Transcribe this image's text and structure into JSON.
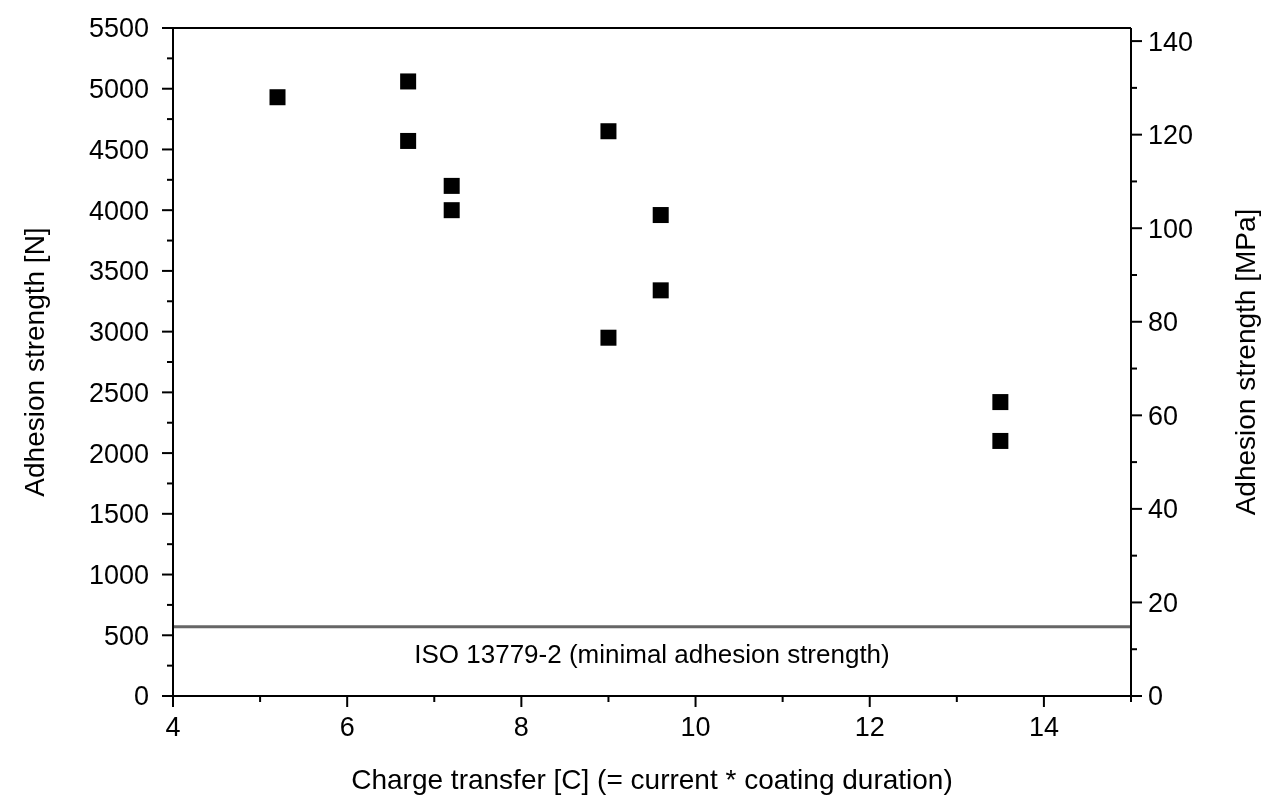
{
  "chart_data": {
    "type": "scatter",
    "xlabel": "Charge transfer [C] (= current * coating duration)",
    "ylabel": "Adhesion strength [N]",
    "y2label": "Adhesion strength [MPa]",
    "x": [
      5.2,
      6.7,
      6.7,
      7.2,
      7.2,
      9.0,
      9.0,
      9.6,
      9.6,
      13.5,
      13.5
    ],
    "series": [
      {
        "color": "#000000",
        "values": [
          4930,
          5060,
          4570,
          4200,
          4000,
          4650,
          2950,
          3960,
          3340,
          2420,
          2100
        ]
      }
    ],
    "marker": "square",
    "xlim": [
      4,
      15
    ],
    "xticks": [
      4,
      {
        "value": 5,
        "label": null
      },
      6,
      {
        "value": 7,
        "label": null
      },
      8,
      {
        "value": 9,
        "label": null
      },
      10,
      {
        "value": 11,
        "label": null
      },
      12,
      {
        "value": 13,
        "label": null
      },
      14,
      {
        "value": 15,
        "label": null
      }
    ],
    "ylim": [
      0,
      5500
    ],
    "yticks": [
      0,
      {
        "value": 250,
        "label": null
      },
      500,
      {
        "value": 750,
        "label": null
      },
      1000,
      {
        "value": 1250,
        "label": null
      },
      1500,
      {
        "value": 1750,
        "label": null
      },
      2000,
      {
        "value": 2250,
        "label": null
      },
      2500,
      {
        "value": 2750,
        "label": null
      },
      3000,
      {
        "value": 3250,
        "label": null
      },
      3500,
      {
        "value": 3750,
        "label": null
      },
      4000,
      {
        "value": 4250,
        "label": null
      },
      4500,
      {
        "value": 4750,
        "label": null
      },
      5000,
      {
        "value": 5250,
        "label": null
      },
      5500
    ],
    "y2lim": [
      0,
      142.8
    ],
    "y2ticks": [
      0,
      {
        "value": 10,
        "label": null
      },
      20,
      {
        "value": 30,
        "label": null
      },
      40,
      {
        "value": 50,
        "label": null
      },
      60,
      {
        "value": 70,
        "label": null
      },
      80,
      {
        "value": 90,
        "label": null
      },
      100,
      {
        "value": 110,
        "label": null
      },
      120,
      {
        "value": 130,
        "label": null
      },
      140
    ],
    "ref_lines": [
      {
        "axis": "y",
        "value": 570,
        "label": "ISO 13779-2 (minimal adhesion strength)",
        "color": "#666666"
      }
    ],
    "grid": false
  }
}
